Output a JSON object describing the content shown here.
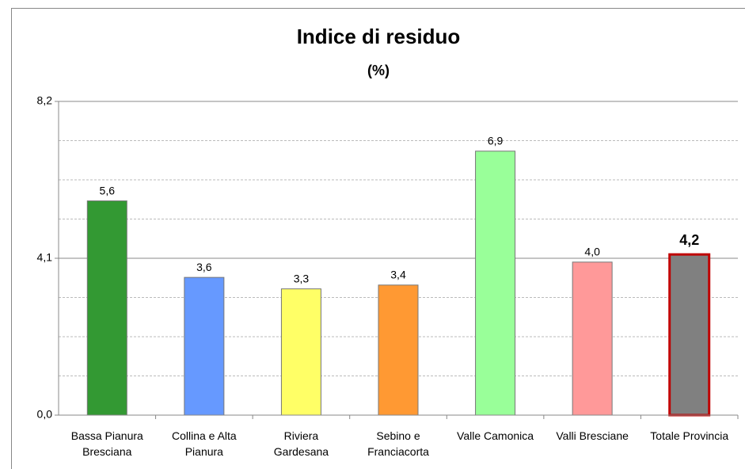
{
  "chart_data": {
    "type": "bar",
    "title": "Indice di residuo",
    "subtitle": "(%)",
    "categories": [
      "Bassa Pianura Bresciana",
      "Collina e Alta Pianura",
      "Riviera Gardesana",
      "Sebino e Franciacorta",
      "Valle Camonica",
      "Valli Bresciane",
      "Totale Provincia"
    ],
    "values": [
      5.6,
      3.6,
      3.3,
      3.4,
      6.9,
      4.0,
      4.2
    ],
    "value_labels": [
      "5,6",
      "3,6",
      "3,3",
      "3,4",
      "6,9",
      "4,0",
      "4,2"
    ],
    "colors": [
      "#339933",
      "#6699ff",
      "#ffff66",
      "#ff9933",
      "#99ff99",
      "#ff9999",
      "#808080"
    ],
    "edgecolors": [
      "#777777",
      "#777777",
      "#777777",
      "#777777",
      "#777777",
      "#777777",
      "#c00000"
    ],
    "label_colors": [
      "#000000",
      "#000000",
      "#000000",
      "#000000",
      "#000000",
      "#000000",
      "#ff0000"
    ],
    "ylim": [
      0,
      8.2
    ],
    "yticks": [
      {
        "value": 0,
        "label": "0,0"
      },
      {
        "value": 4.1,
        "label": "4,1"
      },
      {
        "value": 8.2,
        "label": "8,2"
      }
    ],
    "yminorticks": [
      1.025,
      2.05,
      3.075,
      5.125,
      6.15,
      7.175
    ],
    "grid": true
  }
}
